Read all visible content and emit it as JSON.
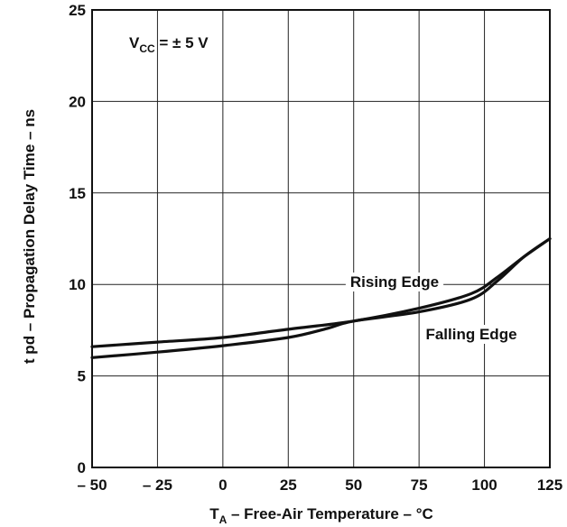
{
  "chart_data": {
    "type": "line",
    "xlabel": {
      "main": "T",
      "sub": "A",
      "rest": " – Free-Air Temperature – °C"
    },
    "ylabel": "t pd  – Propagation Delay Time – ns",
    "xlim": [
      -50,
      125
    ],
    "ylim": [
      0,
      25
    ],
    "xticks": [
      -50,
      -25,
      0,
      25,
      50,
      75,
      100,
      125
    ],
    "xtick_labels": [
      "– 50",
      "– 25",
      "0",
      "25",
      "50",
      "75",
      "100",
      "125"
    ],
    "yticks": [
      0,
      5,
      10,
      15,
      20,
      25
    ],
    "ytick_labels": [
      "0",
      "5",
      "10",
      "15",
      "20",
      "25"
    ],
    "grid": true,
    "annotation": {
      "v": "V",
      "sub": "CC",
      "rest": " = ± 5 V"
    },
    "series": [
      {
        "name": "Rising Edge",
        "x": [
          -50,
          -25,
          0,
          25,
          50,
          75,
          95,
          105,
          115,
          125
        ],
        "y": [
          6.6,
          6.85,
          7.1,
          7.55,
          8.0,
          8.7,
          9.5,
          10.4,
          11.5,
          12.5
        ]
      },
      {
        "name": "Falling Edge",
        "x": [
          -50,
          -25,
          0,
          25,
          40,
          50,
          75,
          95,
          105,
          115,
          125
        ],
        "y": [
          6.0,
          6.3,
          6.65,
          7.1,
          7.6,
          8.0,
          8.5,
          9.2,
          10.2,
          11.5,
          12.5
        ]
      }
    ]
  }
}
